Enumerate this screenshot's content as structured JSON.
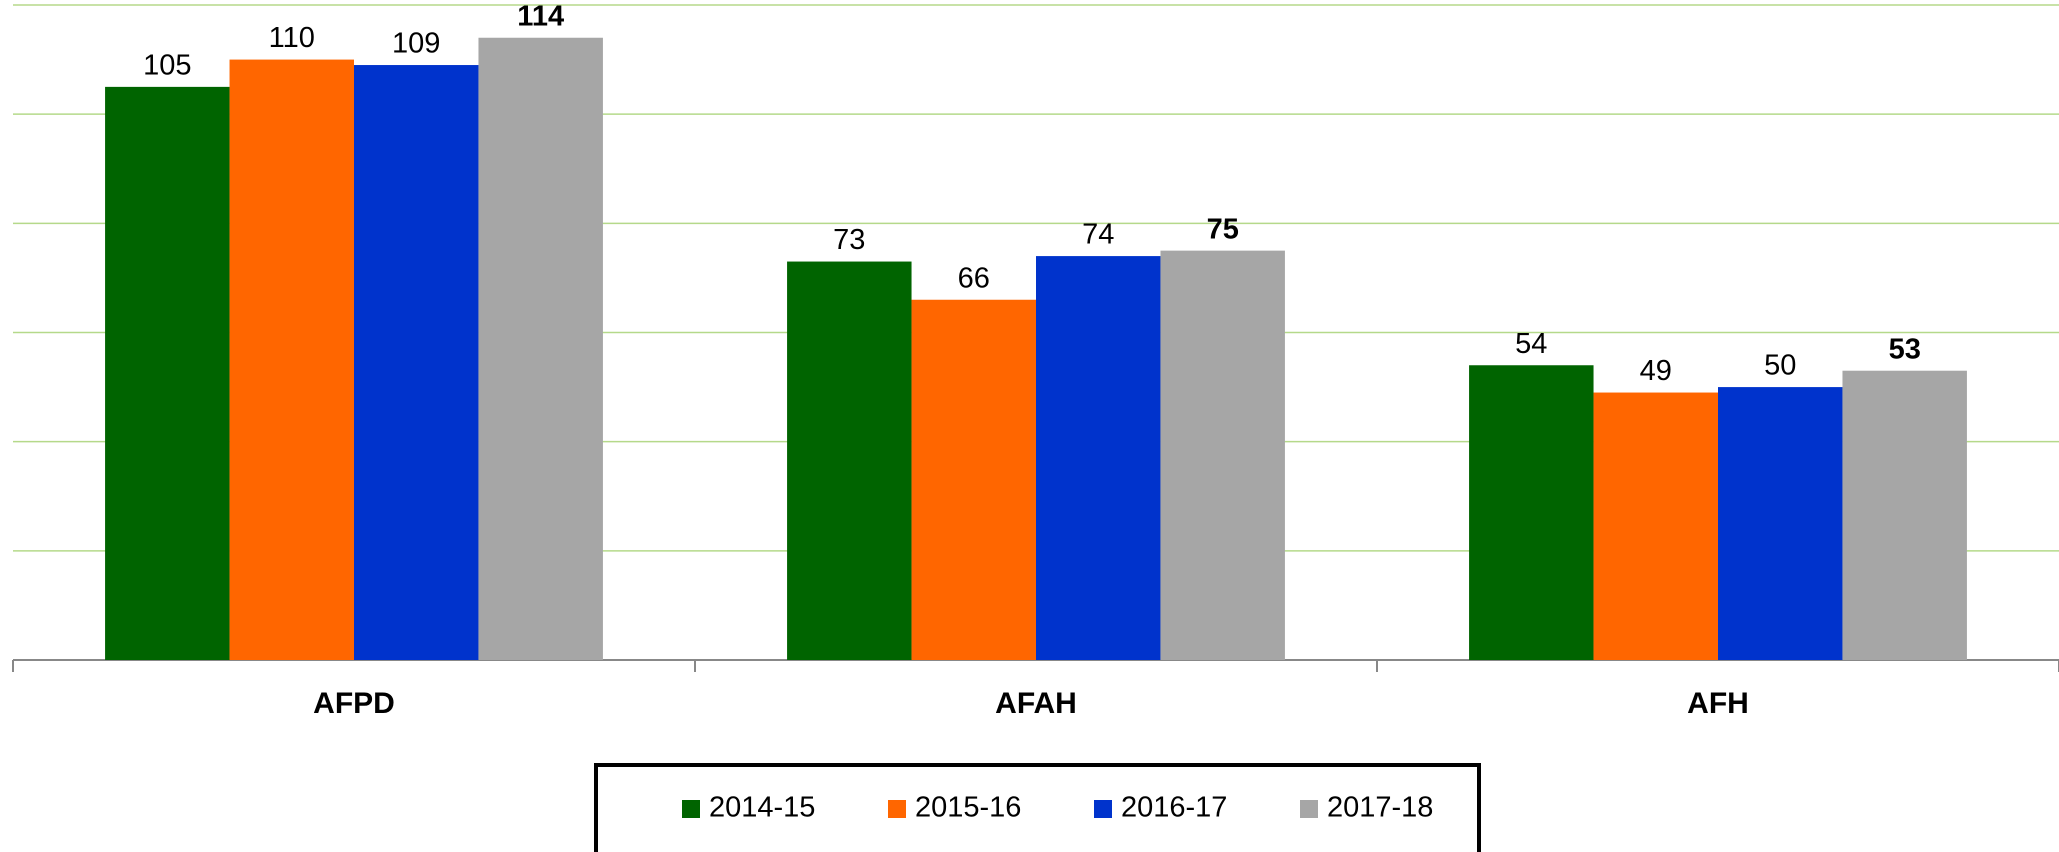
{
  "chart_data": {
    "type": "bar",
    "categories": [
      "AFPD",
      "AFAH",
      "AFH"
    ],
    "series": [
      {
        "name": "2014-15",
        "color": "#006400",
        "values": [
          105,
          73,
          54
        ]
      },
      {
        "name": "2015-16",
        "color": "#ff6600",
        "values": [
          110,
          66,
          49
        ]
      },
      {
        "name": "2016-17",
        "color": "#0033cc",
        "values": [
          109,
          74,
          50
        ]
      },
      {
        "name": "2017-18",
        "color": "#a6a6a6",
        "values": [
          114,
          75,
          53
        ]
      }
    ],
    "ylim": [
      0,
      120
    ],
    "yticks": [
      0,
      20,
      40,
      60,
      80,
      100,
      120
    ],
    "grid": true,
    "legend": "bottom"
  }
}
